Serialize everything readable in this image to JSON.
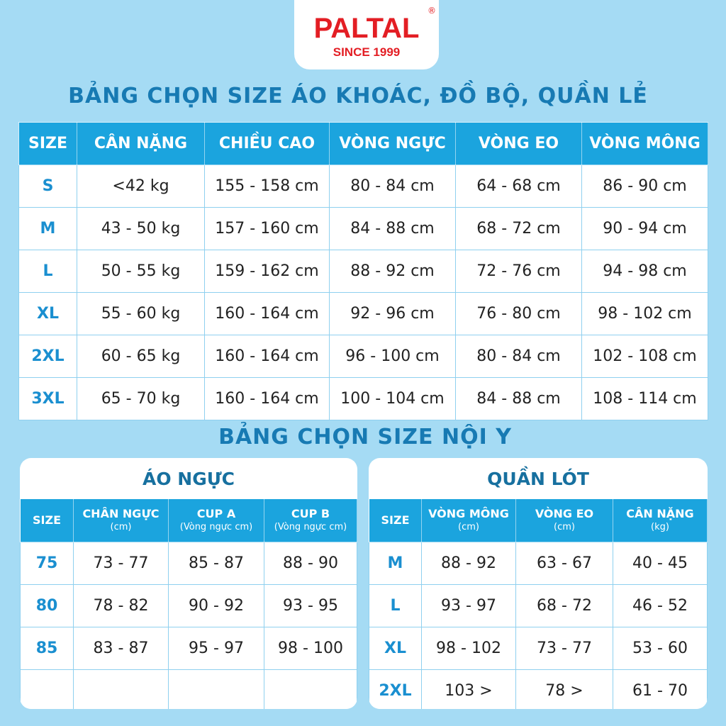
{
  "logo": {
    "brand": "PALTAL",
    "registered": "®",
    "since": "SINCE 1999"
  },
  "colors": {
    "background": "#a5dbf4",
    "header": "#1ba4de",
    "title": "#177ab3",
    "brand": "#e31e24"
  },
  "title1": "BẢNG CHỌN SIZE ÁO KHOÁC, ĐỒ BỘ, QUẦN LẺ",
  "table1": {
    "headers": [
      "SIZE",
      "CÂN NẶNG",
      "CHIỀU CAO",
      "VÒNG NGỰC",
      "VÒNG EO",
      "VÒNG MÔNG"
    ],
    "rows": [
      [
        "S",
        "<42 kg",
        "155 - 158 cm",
        "80 - 84 cm",
        "64 - 68 cm",
        "86 - 90 cm"
      ],
      [
        "M",
        "43 - 50 kg",
        "157 - 160 cm",
        "84 - 88 cm",
        "68 - 72 cm",
        "90 - 94 cm"
      ],
      [
        "L",
        "50 - 55 kg",
        "159 - 162 cm",
        "88 - 92 cm",
        "72 - 76 cm",
        "94 - 98 cm"
      ],
      [
        "XL",
        "55 - 60 kg",
        "160 - 164 cm",
        "92 - 96 cm",
        "76 - 80 cm",
        "98 - 102 cm"
      ],
      [
        "2XL",
        "60 - 65 kg",
        "160 - 164 cm",
        "96 - 100 cm",
        "80 - 84 cm",
        "102 - 108 cm"
      ],
      [
        "3XL",
        "65 - 70 kg",
        "160 - 164 cm",
        "100 - 104 cm",
        "84 - 88 cm",
        "108 - 114 cm"
      ]
    ]
  },
  "title2": "BẢNG CHỌN SIZE NỘI Y",
  "bra": {
    "title": "ÁO NGỰC",
    "headers": [
      {
        "main": "SIZE",
        "sub": ""
      },
      {
        "main": "CHÂN NGỰC",
        "sub": "(cm)"
      },
      {
        "main": "CUP A",
        "sub": "(Vòng ngực cm)"
      },
      {
        "main": "CUP B",
        "sub": "(Vòng ngực cm)"
      }
    ],
    "rows": [
      [
        "75",
        "73 - 77",
        "85 - 87",
        "88 - 90"
      ],
      [
        "80",
        "78 - 82",
        "90 - 92",
        "93 - 95"
      ],
      [
        "85",
        "83 - 87",
        "95 - 97",
        "98 - 100"
      ],
      [
        "",
        "",
        "",
        ""
      ]
    ]
  },
  "panties": {
    "title": "QUẦN LÓT",
    "headers": [
      {
        "main": "SIZE",
        "sub": ""
      },
      {
        "main": "VÒNG MÔNG",
        "sub": "(cm)"
      },
      {
        "main": "VÒNG  EO",
        "sub": "(cm)"
      },
      {
        "main": "CÂN NẶNG",
        "sub": "(kg)"
      }
    ],
    "rows": [
      [
        "M",
        "88 - 92",
        "63 - 67",
        "40 - 45"
      ],
      [
        "L",
        "93 - 97",
        "68 - 72",
        "46 - 52"
      ],
      [
        "XL",
        "98 - 102",
        "73 - 77",
        "53 - 60"
      ],
      [
        "2XL",
        "103 >",
        "78 >",
        "61 - 70"
      ]
    ]
  }
}
